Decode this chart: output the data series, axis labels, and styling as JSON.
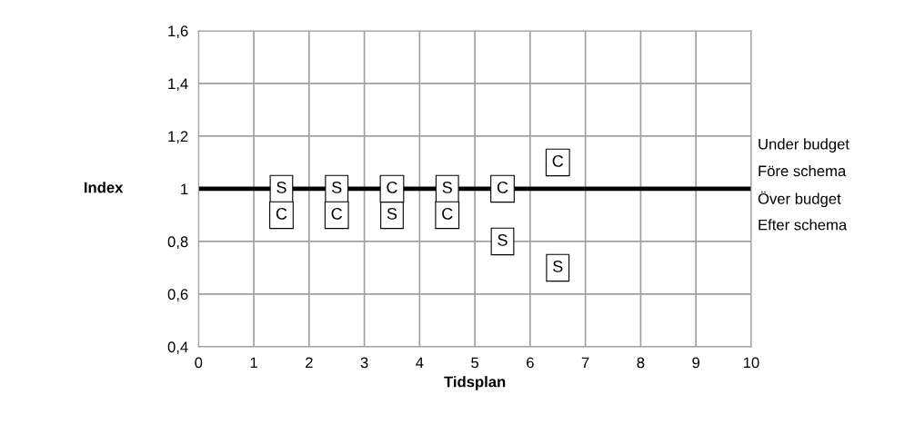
{
  "chart_data": {
    "type": "scatter",
    "xlabel": "Tidsplan",
    "ylabel": "Index",
    "xlim": [
      0,
      10
    ],
    "ylim": [
      0.4,
      1.6
    ],
    "xticks": [
      0,
      1,
      2,
      3,
      4,
      5,
      6,
      7,
      8,
      9,
      10
    ],
    "yticks": [
      {
        "value": 0.4,
        "label": "0,4"
      },
      {
        "value": 0.6,
        "label": "0,6"
      },
      {
        "value": 0.8,
        "label": "0,8"
      },
      {
        "value": 1,
        "label": "1"
      },
      {
        "value": 1.2,
        "label": "1,2"
      },
      {
        "value": 1.4,
        "label": "1,4"
      },
      {
        "value": 1.6,
        "label": "1,6"
      }
    ],
    "grid": true,
    "marker": "square",
    "series": [
      {
        "color": "#000000",
        "x": [
          1.5,
          2.5,
          3.5,
          4.5,
          5.5,
          6.5
        ],
        "values": [
          1,
          1,
          0.9,
          1,
          0.8,
          0.7
        ],
        "value_labels": [
          "S",
          "S",
          "S",
          "S",
          "S",
          "S"
        ]
      },
      {
        "color": "#000000",
        "x": [
          1.5,
          2.5,
          3.5,
          4.5,
          5.5,
          6.5
        ],
        "values": [
          0.9,
          0.9,
          1,
          0.9,
          1,
          1.1
        ],
        "value_labels": [
          "C",
          "C",
          "C",
          "C",
          "C",
          "C"
        ]
      }
    ],
    "ref_lines": [
      {
        "axis": "y",
        "value": 1,
        "color": "#000000",
        "line_style": "solid"
      }
    ],
    "annotations": [
      "Under budget",
      "Före schema",
      "Över budget",
      "Efter schema"
    ]
  }
}
